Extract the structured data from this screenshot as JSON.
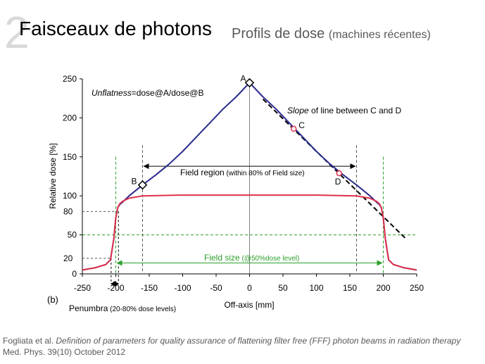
{
  "slide": {
    "number": "2",
    "title": "Faisceaux de photons",
    "subtitle": "Profils de dose",
    "subtitle_note": "(machines récentes)"
  },
  "citation": {
    "authors": "Fogliata et al. ",
    "article_title": "Definition of parameters for quality assurance of flattening filter free (FFF) photon beams in radiation therapy",
    "journal": " Med. Phys. 39(10) October 2012"
  },
  "chart_data": {
    "type": "line",
    "xlabel": "Off-axis [mm]",
    "ylabel": "Relative dose [%]",
    "xlim": [
      -250,
      250
    ],
    "ylim": [
      0,
      250
    ],
    "x_ticks": [
      -250,
      -200,
      -150,
      -100,
      -50,
      0,
      50,
      100,
      150,
      200,
      250
    ],
    "y_ticks": [
      0,
      50,
      100,
      150,
      200,
      250
    ],
    "y_extra_ticks": [
      20,
      80
    ],
    "panel_label": "(b)",
    "colors": {
      "fff": "#2b2b8f",
      "flattened": "#e0304a",
      "green": "#2ca02c",
      "guide": "#555555",
      "point_c_d": "#e0304a"
    },
    "series": [
      {
        "x": [
          -250,
          -230,
          -215,
          -208,
          -203,
          -200,
          -197,
          -194,
          -190,
          -180,
          -160,
          -140,
          -120,
          -100,
          -80,
          -60,
          -40,
          -20,
          -10,
          0,
          10,
          20,
          40,
          60,
          80,
          100,
          120,
          140,
          160,
          180,
          190,
          194,
          197,
          200,
          203,
          208,
          215,
          230,
          250
        ],
        "y": [
          5,
          8,
          12,
          18,
          45,
          72,
          85,
          89,
          92,
          100,
          114,
          127,
          141,
          157,
          175,
          193,
          211,
          227,
          236,
          245,
          236,
          227,
          211,
          193,
          175,
          157,
          141,
          127,
          114,
          100,
          92,
          89,
          85,
          72,
          45,
          18,
          12,
          8,
          5
        ]
      },
      {
        "x": [
          -250,
          -230,
          -215,
          -208,
          -203,
          -200,
          -197,
          -194,
          -190,
          -180,
          -160,
          -100,
          -50,
          0,
          50,
          100,
          160,
          180,
          190,
          194,
          197,
          200,
          203,
          208,
          215,
          230,
          250
        ],
        "y": [
          5,
          8,
          12,
          18,
          45,
          72,
          85,
          90,
          93,
          97,
          100,
          101,
          101,
          101,
          101,
          101,
          100,
          97,
          93,
          90,
          85,
          72,
          45,
          18,
          12,
          8,
          5
        ]
      }
    ],
    "points": [
      {
        "label": "A",
        "x": 0,
        "y": 245
      },
      {
        "label": "B",
        "x": -160,
        "y": 114
      },
      {
        "label": "C",
        "x": 66,
        "y": 186
      },
      {
        "label": "D",
        "x": 134,
        "y": 129
      }
    ],
    "slope_line": {
      "from": [
        20,
        224
      ],
      "to": [
        235,
        44
      ]
    },
    "annotations": {
      "unflatness_italic": "Unflatness",
      "unflatness_rest": "=dose@A/dose@B",
      "slope_italic": "Slope",
      "slope_rest": " of line between C and D",
      "field_region_main": "Field region",
      "field_region_note": " (within 80% of Field size)",
      "field_size_main": "Field size",
      "field_size_note": " (@50%dose level)",
      "penumbra_main": "Penumbra",
      "penumbra_note": " (20-80% dose levels)"
    }
  }
}
